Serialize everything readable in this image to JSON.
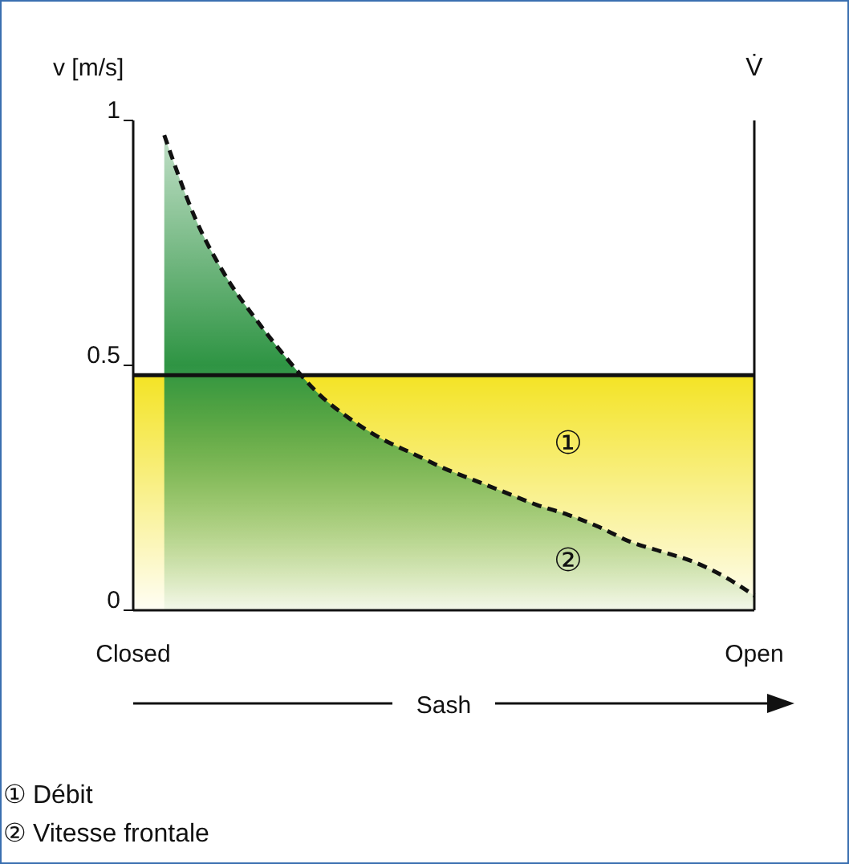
{
  "chart_data": {
    "type": "area",
    "xlabel": "Sash",
    "ylabel": "v [m/s]",
    "y2label": "V̇",
    "categories": [
      "Closed",
      null,
      null,
      null,
      null,
      null,
      null,
      null,
      null,
      null,
      null,
      null,
      null,
      null,
      null,
      null,
      null,
      null,
      null,
      null,
      "Open"
    ],
    "ylim": [
      0,
      1
    ],
    "yticks": [
      0,
      0.5,
      1
    ],
    "series": [
      {
        "color": "#f3e21c",
        "line_style": "solid",
        "values": [
          0.48,
          0.48,
          0.48,
          0.48,
          0.48,
          0.48,
          0.48,
          0.48,
          0.48,
          0.48,
          0.48,
          0.48,
          0.48,
          0.48,
          0.48,
          0.48,
          0.48,
          0.48,
          0.48,
          0.48,
          0.48
        ]
      },
      {
        "color": "#2e9443",
        "line_style": "dashed",
        "values": [
          null,
          0.97,
          0.8,
          0.68,
          0.59,
          0.51,
          0.44,
          0.39,
          0.35,
          0.32,
          0.29,
          0.265,
          0.24,
          0.215,
          0.195,
          0.17,
          0.14,
          0.12,
          0.1,
          0.07,
          0.03
        ]
      }
    ],
    "annotations": [
      "①",
      "②",
      "① Débit",
      "② Vitesse frontale"
    ],
    "grid": false
  }
}
